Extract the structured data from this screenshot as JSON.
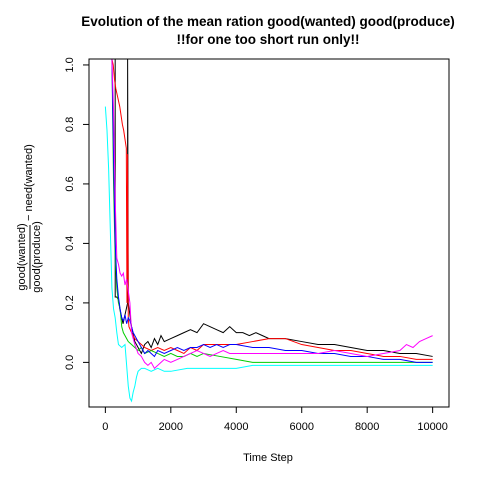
{
  "chart_data": {
    "type": "line",
    "title": "Evolution of the mean ration good(wanted) good(produce)",
    "subtitle": "!!for one too short run only!!",
    "xlabel": "Time Step",
    "ylabel": {
      "numerator": "good(wanted)",
      "denominator": "good(produce)",
      "suffix": "− need(wanted)"
    },
    "xlim": [
      -500,
      10500
    ],
    "ylim": [
      -0.15,
      1.02
    ],
    "xticks": [
      "0",
      "2000",
      "4000",
      "6000",
      "8000",
      "10000"
    ],
    "yticks": [
      "0.0",
      "0.2",
      "0.4",
      "0.6",
      "0.8",
      "1.0"
    ],
    "grid": false,
    "legend": "none",
    "series": [
      {
        "color": "#000000",
        "x": [
          200,
          250,
          300,
          301,
          350,
          400,
          420,
          440,
          460,
          480,
          500,
          520,
          540,
          560,
          580,
          600,
          620,
          640,
          660,
          680,
          680,
          700,
          800,
          900,
          1000,
          1100,
          1200,
          1300,
          1400,
          1500,
          1600,
          1700,
          1800,
          2000,
          2200,
          2400,
          2600,
          2800,
          3000,
          3200,
          3400,
          3600,
          3800,
          4000,
          4200,
          4400,
          4600,
          4800,
          5000,
          5500,
          6000,
          6500,
          7000,
          7500,
          8000,
          8500,
          9000,
          9500,
          10000
        ],
        "y": [
          1.02,
          1.02,
          1.02,
          0.22,
          0.22,
          0.21,
          0.2,
          0.18,
          0.17,
          0.16,
          0.15,
          0.14,
          0.13,
          0.14,
          0.15,
          0.16,
          0.17,
          0.18,
          0.19,
          0.2,
          1.02,
          0.2,
          0.12,
          0.07,
          0.05,
          0.03,
          0.06,
          0.07,
          0.05,
          0.08,
          0.06,
          0.09,
          0.07,
          0.08,
          0.09,
          0.1,
          0.11,
          0.1,
          0.13,
          0.12,
          0.11,
          0.1,
          0.12,
          0.1,
          0.1,
          0.09,
          0.1,
          0.09,
          0.08,
          0.08,
          0.07,
          0.06,
          0.06,
          0.05,
          0.04,
          0.04,
          0.03,
          0.03,
          0.02
        ]
      },
      {
        "color": "#ff0000",
        "x": [
          200,
          240,
          280,
          320,
          360,
          400,
          440,
          480,
          520,
          560,
          600,
          640,
          660,
          680,
          700,
          720,
          760,
          800,
          900,
          1000,
          1100,
          1200,
          1400,
          1600,
          1800,
          2000,
          2200,
          2400,
          2600,
          2800,
          3000,
          3500,
          4000,
          4500,
          5000,
          5500,
          6000,
          6500,
          7000,
          7500,
          8000,
          8500,
          9000,
          9500,
          10000
        ],
        "y": [
          1.02,
          1.0,
          0.95,
          0.92,
          0.9,
          0.88,
          0.86,
          0.83,
          0.8,
          0.78,
          0.75,
          0.72,
          0.2,
          0.7,
          0.15,
          0.12,
          0.11,
          0.1,
          0.08,
          0.07,
          0.06,
          0.05,
          0.04,
          0.05,
          0.04,
          0.05,
          0.04,
          0.03,
          0.05,
          0.04,
          0.06,
          0.06,
          0.06,
          0.07,
          0.08,
          0.08,
          0.06,
          0.05,
          0.04,
          0.04,
          0.03,
          0.02,
          0.02,
          0.01,
          0.01
        ]
      },
      {
        "color": "#00cd00",
        "x": [
          200,
          250,
          300,
          350,
          400,
          450,
          500,
          550,
          600,
          650,
          700,
          800,
          900,
          1000,
          1100,
          1200,
          1400,
          1600,
          1800,
          2000,
          2200,
          2400,
          2600,
          2800,
          3000,
          3500,
          4000,
          4500,
          5000,
          5500,
          6000,
          6500,
          7000,
          7500,
          8000,
          8500,
          9000,
          9500,
          10000
        ],
        "y": [
          1.02,
          0.6,
          0.35,
          0.25,
          0.2,
          0.18,
          0.12,
          0.1,
          0.09,
          0.08,
          0.07,
          0.06,
          0.05,
          0.04,
          0.05,
          0.03,
          0.04,
          0.03,
          0.02,
          0.03,
          0.02,
          0.02,
          0.03,
          0.02,
          0.03,
          0.02,
          0.01,
          0.0,
          0.0,
          0.0,
          0.0,
          0.0,
          0.0,
          0.0,
          0.0,
          0.0,
          0.0,
          0.0,
          0.0
        ]
      },
      {
        "color": "#0000ff",
        "x": [
          200,
          250,
          300,
          350,
          400,
          450,
          500,
          550,
          600,
          650,
          700,
          750,
          800,
          850,
          900,
          1000,
          1100,
          1200,
          1300,
          1400,
          1500,
          1600,
          1800,
          2000,
          2200,
          2400,
          2600,
          2800,
          3000,
          3200,
          3400,
          3600,
          3800,
          4000,
          4500,
          5000,
          5500,
          6000,
          6500,
          7000,
          7500,
          8000,
          8500,
          9000,
          9500,
          10000
        ],
        "y": [
          1.02,
          0.7,
          0.4,
          0.28,
          0.22,
          0.18,
          0.15,
          0.14,
          0.16,
          0.13,
          0.15,
          0.14,
          0.12,
          0.1,
          0.09,
          0.07,
          0.05,
          0.03,
          0.04,
          0.03,
          0.02,
          0.04,
          0.03,
          0.04,
          0.05,
          0.04,
          0.05,
          0.05,
          0.06,
          0.05,
          0.06,
          0.05,
          0.06,
          0.06,
          0.05,
          0.05,
          0.04,
          0.04,
          0.03,
          0.03,
          0.02,
          0.02,
          0.01,
          0.01,
          0.0,
          0.0
        ]
      },
      {
        "color": "#ff00ff",
        "x": [
          200,
          250,
          300,
          350,
          400,
          450,
          500,
          550,
          600,
          650,
          700,
          750,
          800,
          850,
          900,
          1000,
          1100,
          1200,
          1300,
          1400,
          1500,
          1600,
          1700,
          1800,
          2000,
          2200,
          2400,
          2600,
          2800,
          3000,
          3200,
          3400,
          3600,
          3800,
          4000,
          4500,
          5000,
          5500,
          6000,
          6500,
          7000,
          7500,
          8000,
          8500,
          9000,
          9200,
          9400,
          9600,
          9800,
          10000
        ],
        "y": [
          1.02,
          0.85,
          0.55,
          0.35,
          0.33,
          0.3,
          0.29,
          0.3,
          0.26,
          0.28,
          0.24,
          0.2,
          0.1,
          0.08,
          0.06,
          0.03,
          0.02,
          0.0,
          -0.01,
          0.0,
          -0.02,
          -0.01,
          0.0,
          0.01,
          0.0,
          0.01,
          0.02,
          0.03,
          0.04,
          0.03,
          0.02,
          0.03,
          0.04,
          0.03,
          0.03,
          0.03,
          0.03,
          0.03,
          0.03,
          0.03,
          0.04,
          0.03,
          0.02,
          0.03,
          0.04,
          0.06,
          0.05,
          0.07,
          0.08,
          0.09
        ]
      },
      {
        "color": "#00ffff",
        "x": [
          0,
          50,
          100,
          150,
          200,
          250,
          300,
          350,
          400,
          500,
          600,
          700,
          750,
          800,
          850,
          900,
          950,
          1000,
          1100,
          1200,
          1400,
          1600,
          1800,
          2000,
          2500,
          3000,
          3500,
          4000,
          4500,
          5000,
          5500,
          6000,
          6500,
          7000,
          7500,
          8000,
          8500,
          9000,
          9500,
          10000
        ],
        "y": [
          0.86,
          0.78,
          0.65,
          0.45,
          0.25,
          0.18,
          0.15,
          0.1,
          0.06,
          0.05,
          0.06,
          -0.08,
          -0.12,
          -0.13,
          -0.1,
          -0.08,
          -0.05,
          -0.03,
          -0.02,
          -0.02,
          -0.03,
          -0.02,
          -0.03,
          -0.03,
          -0.02,
          -0.02,
          -0.02,
          -0.02,
          -0.01,
          -0.01,
          -0.01,
          -0.01,
          -0.01,
          -0.01,
          -0.01,
          -0.01,
          -0.01,
          -0.01,
          -0.01,
          -0.01
        ]
      }
    ]
  }
}
